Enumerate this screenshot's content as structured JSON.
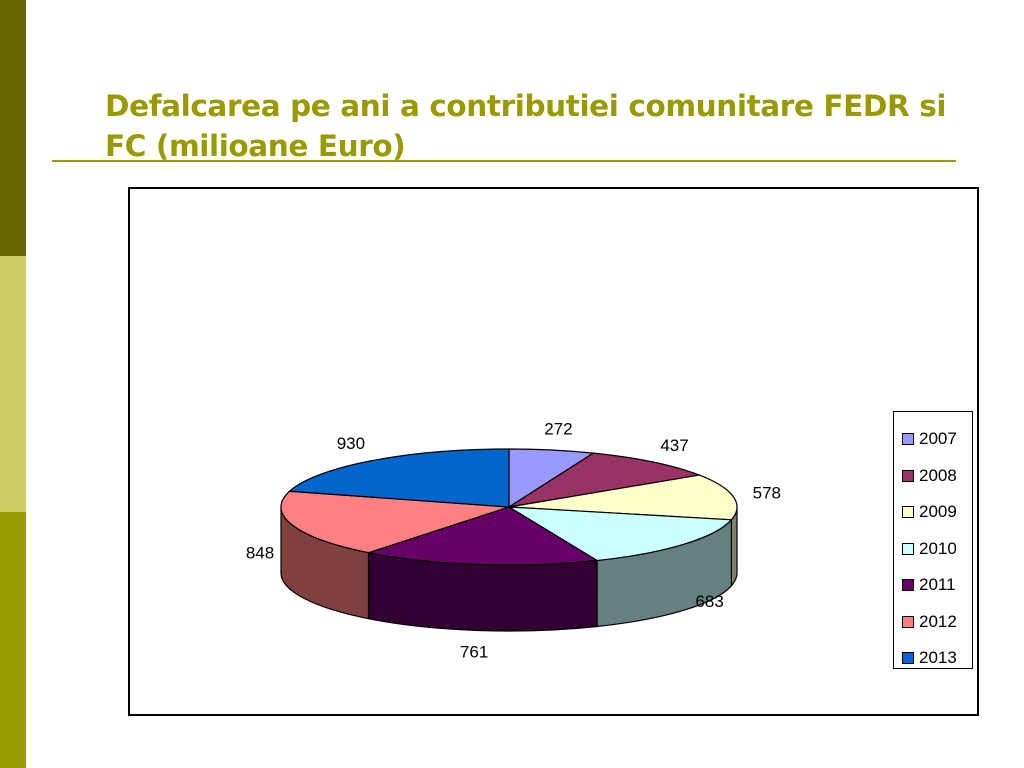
{
  "slide": {
    "title": "Defalcarea pe ani a contributiei comunitare FEDR si FC (milioane Euro)",
    "title_color": "#999900",
    "accent_dark": "#666600",
    "accent_light": "#CCCC66",
    "accent_mid": "#999900"
  },
  "chart_data": {
    "type": "pie",
    "style": "3d-exploded-none",
    "categories": [
      "2007",
      "2008",
      "2009",
      "2010",
      "2011",
      "2012",
      "2013"
    ],
    "values": [
      272,
      437,
      578,
      683,
      761,
      848,
      930
    ],
    "colors": [
      "#9999FF",
      "#993366",
      "#FFFFCC",
      "#CCFFFF",
      "#660066",
      "#FF8080",
      "#0066CC"
    ],
    "data_labels": [
      "272",
      "437",
      "578",
      "683",
      "761",
      "848",
      "930"
    ],
    "title": "",
    "legend_position": "right"
  }
}
